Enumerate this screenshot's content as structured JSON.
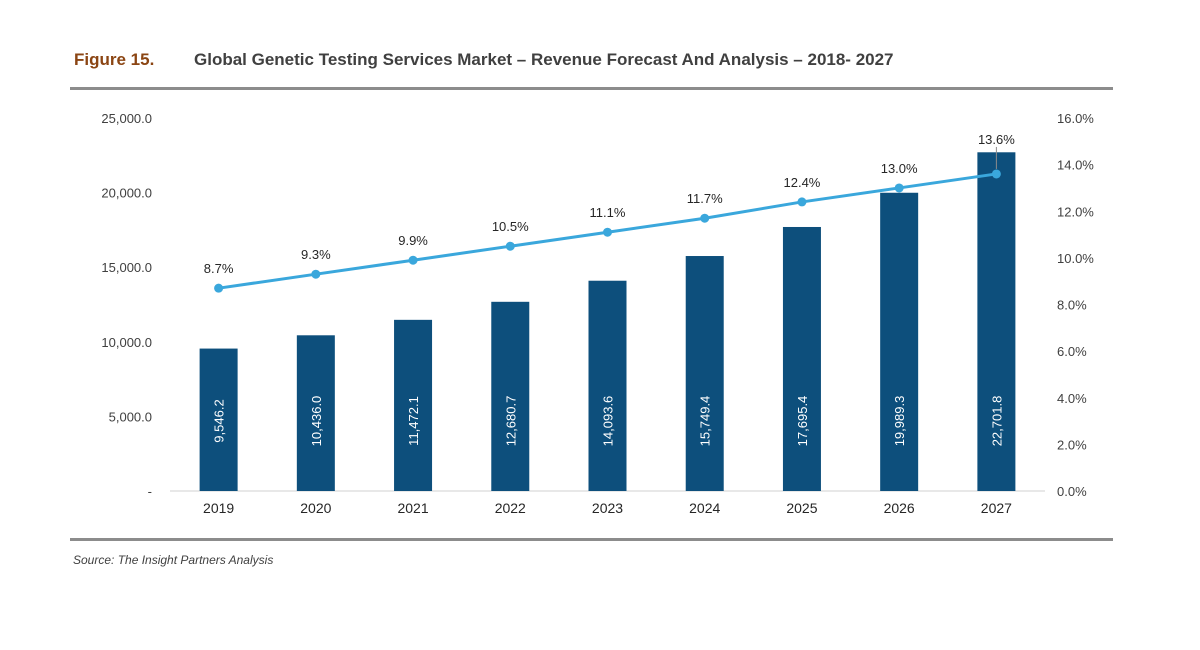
{
  "figure": {
    "number": "Figure 15.",
    "title": "Global Genetic Testing Services Market – Revenue Forecast And Analysis – 2018- 2027"
  },
  "source": "Source: The Insight Partners Analysis",
  "colors": {
    "bar": "#0d4f7c",
    "line": "#3aa7dc",
    "figure_number": "#8B4513",
    "rule": "#8c8c8c"
  },
  "chart_data": {
    "type": "bar",
    "categories": [
      "2019",
      "2020",
      "2021",
      "2022",
      "2023",
      "2024",
      "2025",
      "2026",
      "2027"
    ],
    "series": [
      {
        "axis": "left",
        "type": "bar",
        "values": [
          9546.2,
          10436.0,
          11472.1,
          12680.7,
          14093.6,
          15749.4,
          17695.4,
          19989.3,
          22701.8
        ],
        "labels": [
          "9,546.2",
          "10,436.0",
          "11,472.1",
          "12,680.7",
          "14,093.6",
          "15,749.4",
          "17,695.4",
          "19,989.3",
          "22,701.8"
        ]
      },
      {
        "axis": "right",
        "type": "line",
        "values": [
          8.7,
          9.3,
          9.9,
          10.5,
          11.1,
          11.7,
          12.4,
          13.0,
          13.6
        ],
        "labels": [
          "8.7%",
          "9.3%",
          "9.9%",
          "10.5%",
          "11.1%",
          "11.7%",
          "12.4%",
          "13.0%",
          "13.6%"
        ]
      }
    ],
    "y_left": {
      "min": 0,
      "max": 25000,
      "ticks": [
        0,
        5000,
        10000,
        15000,
        20000,
        25000
      ],
      "tick_labels": [
        "-",
        "5,000.0",
        "10,000.0",
        "15,000.0",
        "20,000.0",
        "25,000.0"
      ]
    },
    "y_right": {
      "min": 0,
      "max": 16,
      "ticks": [
        0,
        2,
        4,
        6,
        8,
        10,
        12,
        14,
        16
      ],
      "tick_labels": [
        "0.0%",
        "2.0%",
        "4.0%",
        "6.0%",
        "8.0%",
        "10.0%",
        "12.0%",
        "14.0%",
        "16.0%"
      ]
    },
    "grid": false,
    "legend": "none",
    "title": "",
    "xlabel": "",
    "ylabel": ""
  }
}
